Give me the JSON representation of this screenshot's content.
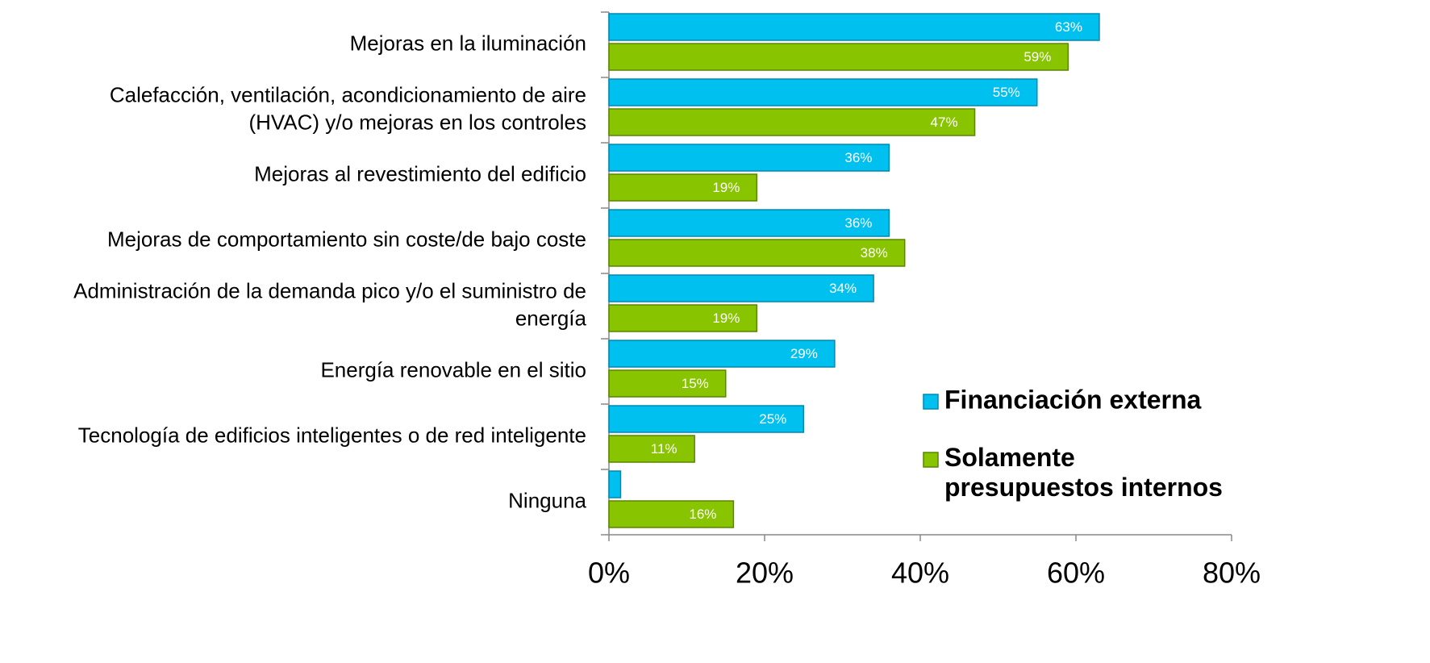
{
  "chart_data": {
    "type": "bar",
    "orientation": "horizontal",
    "categories": [
      "Mejoras en la iluminación",
      "Calefacción, ventilación, acondicionamiento de aire\n(HVAC) y/o mejoras en los controles",
      "Mejoras al revestimiento del edificio",
      "Mejoras de comportamiento sin coste/de bajo coste",
      "Administración de la demanda pico y/o el suministro de\nenergía",
      "Energía renovable en el sitio",
      "Tecnología de edificios inteligentes o de red inteligente",
      "Ninguna"
    ],
    "series": [
      {
        "name": "Financiación externa",
        "color": "#00c0f0",
        "values": [
          63,
          55,
          36,
          36,
          34,
          29,
          25,
          1.5
        ],
        "value_labels": [
          "63%",
          "55%",
          "36%",
          "36%",
          "34%",
          "29%",
          "25%",
          null
        ]
      },
      {
        "name": "Solamente\npresupuestos internos",
        "color": "#88c400",
        "values": [
          59,
          47,
          19,
          38,
          19,
          15,
          11,
          16
        ],
        "value_labels": [
          "59%",
          "47%",
          "19%",
          "38%",
          "19%",
          "15%",
          "11%",
          "16%"
        ]
      }
    ],
    "xlim": [
      0,
      80
    ],
    "xticks": [
      {
        "value": 0,
        "label": "0%"
      },
      {
        "value": 20,
        "label": "20%"
      },
      {
        "value": 40,
        "label": "40%"
      },
      {
        "value": 60,
        "label": "60%"
      },
      {
        "value": 80,
        "label": "80%"
      }
    ],
    "legend": "right"
  }
}
